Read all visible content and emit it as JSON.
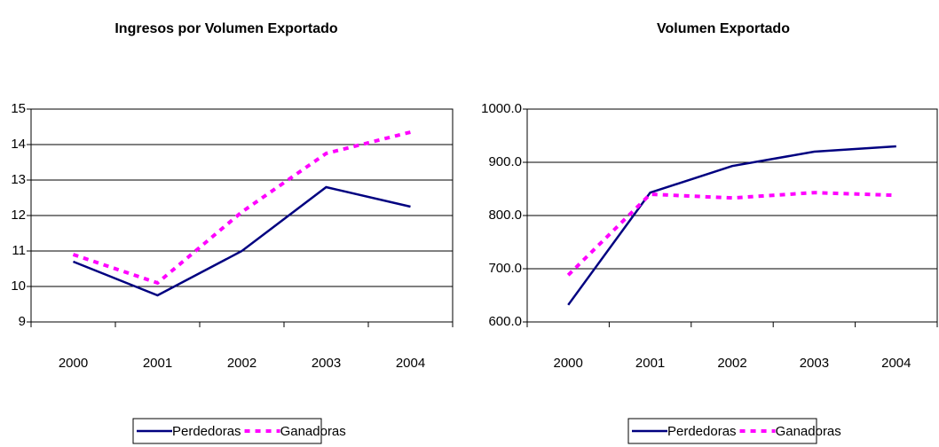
{
  "chart_data": [
    {
      "type": "line",
      "title": "Ingresos por Volumen Exportado",
      "categories": [
        "2000",
        "2001",
        "2002",
        "2003",
        "2004"
      ],
      "series": [
        {
          "name": "Perdedoras",
          "color": "#000080",
          "values": [
            10.7,
            9.75,
            11.0,
            12.8,
            12.25
          ]
        },
        {
          "name": "Ganadoras",
          "color": "#ff00ff",
          "values": [
            10.9,
            10.1,
            12.1,
            13.75,
            14.35
          ]
        }
      ],
      "ylim": [
        9,
        15
      ],
      "yticks": [
        9,
        10,
        11,
        12,
        13,
        14,
        15
      ],
      "grid": true
    },
    {
      "type": "line",
      "title": "Volumen Exportado",
      "categories": [
        "2000",
        "2001",
        "2002",
        "2003",
        "2004"
      ],
      "series": [
        {
          "name": "Perdedoras",
          "color": "#000080",
          "values": [
            632,
            843,
            893,
            920,
            930
          ]
        },
        {
          "name": "Ganadoras",
          "color": "#ff00ff",
          "values": [
            688,
            840,
            833,
            843,
            838
          ]
        }
      ],
      "ylim": [
        600,
        1000
      ],
      "yticks": [
        {
          "value": 600,
          "label": "600.0"
        },
        {
          "value": 700,
          "label": "700.0"
        },
        {
          "value": 800,
          "label": "800.0"
        },
        {
          "value": 900,
          "label": "900.0"
        },
        {
          "value": 1000,
          "label": "1000.0"
        }
      ],
      "grid": true
    }
  ]
}
